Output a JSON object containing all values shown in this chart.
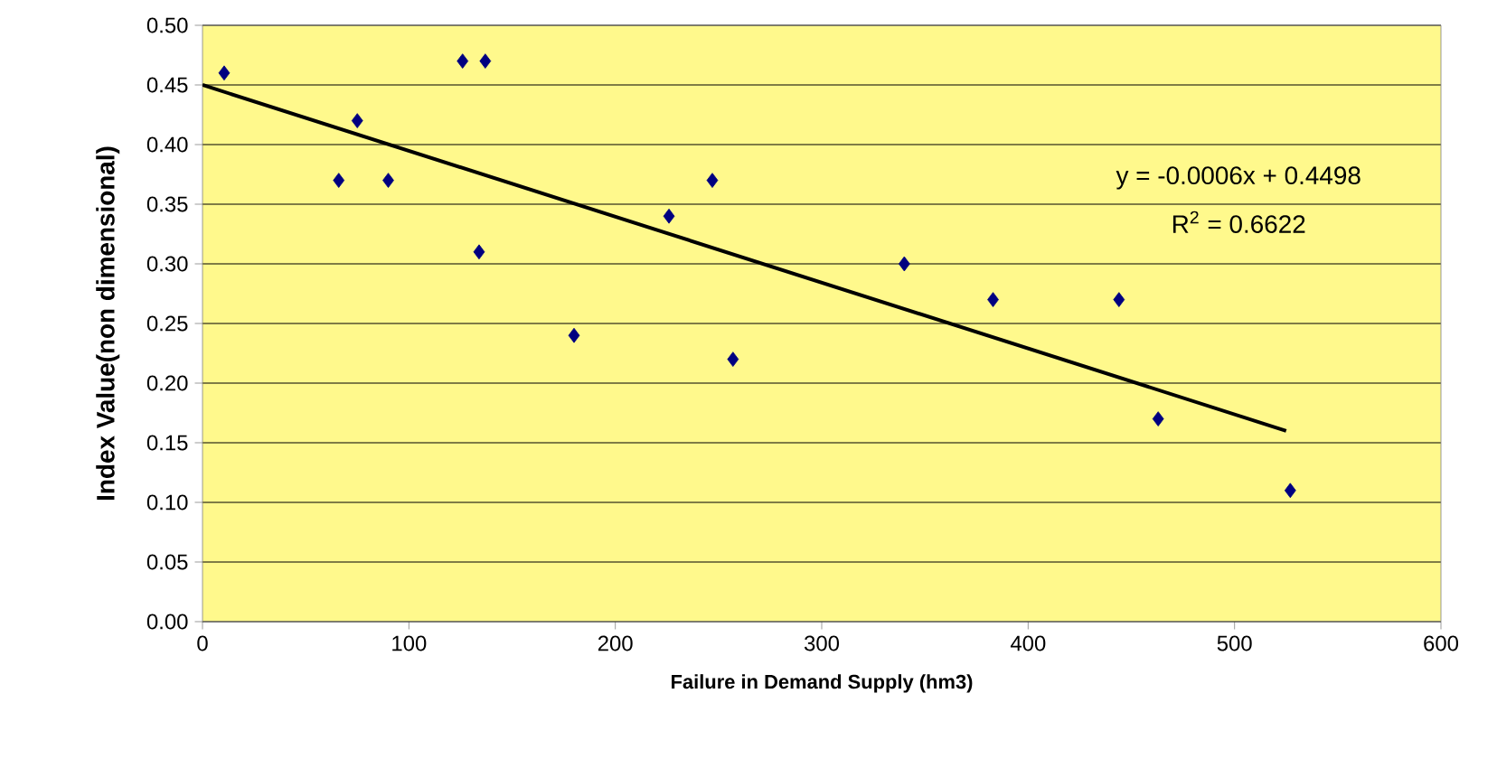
{
  "chart_data": {
    "type": "scatter",
    "xlabel": "Failure in Demand Supply (hm3)",
    "ylabel": "Index Value(non dimensional)",
    "xlim": [
      0,
      600
    ],
    "xticks": [
      0,
      100,
      200,
      300,
      400,
      500,
      600
    ],
    "ylim": [
      0,
      0.5
    ],
    "yticks": [
      {
        "value": 0,
        "label": "0.00"
      },
      {
        "value": 0.05,
        "label": "0.05"
      },
      {
        "value": 0.1,
        "label": "0.10"
      },
      {
        "value": 0.15,
        "label": "0.15"
      },
      {
        "value": 0.2,
        "label": "0.20"
      },
      {
        "value": 0.25,
        "label": "0.25"
      },
      {
        "value": 0.3,
        "label": "0.30"
      },
      {
        "value": 0.35,
        "label": "0.35"
      },
      {
        "value": 0.4,
        "label": "0.40"
      },
      {
        "value": 0.45,
        "label": "0.45"
      },
      {
        "value": 0.5,
        "label": "0.50"
      }
    ],
    "grid": "y",
    "marker": "diamond",
    "series": [
      {
        "color": "#000080",
        "x": [
          10.5,
          66,
          75,
          90,
          126,
          137,
          134,
          180,
          226,
          247,
          257,
          340,
          383,
          444,
          463,
          527
        ],
        "values": [
          0.46,
          0.37,
          0.42,
          0.37,
          0.47,
          0.47,
          0.31,
          0.24,
          0.34,
          0.37,
          0.22,
          0.3,
          0.27,
          0.27,
          0.17,
          0.11
        ]
      },
      {
        "type": "line",
        "color": "#000000",
        "marker": "none",
        "line_style": "solid",
        "x": [
          0,
          525
        ],
        "values": [
          0.45,
          0.16
        ]
      }
    ],
    "annotations": [
      "y = -0.0006x + 0.4498",
      "R$^{2}$ = 0.6622"
    ]
  }
}
